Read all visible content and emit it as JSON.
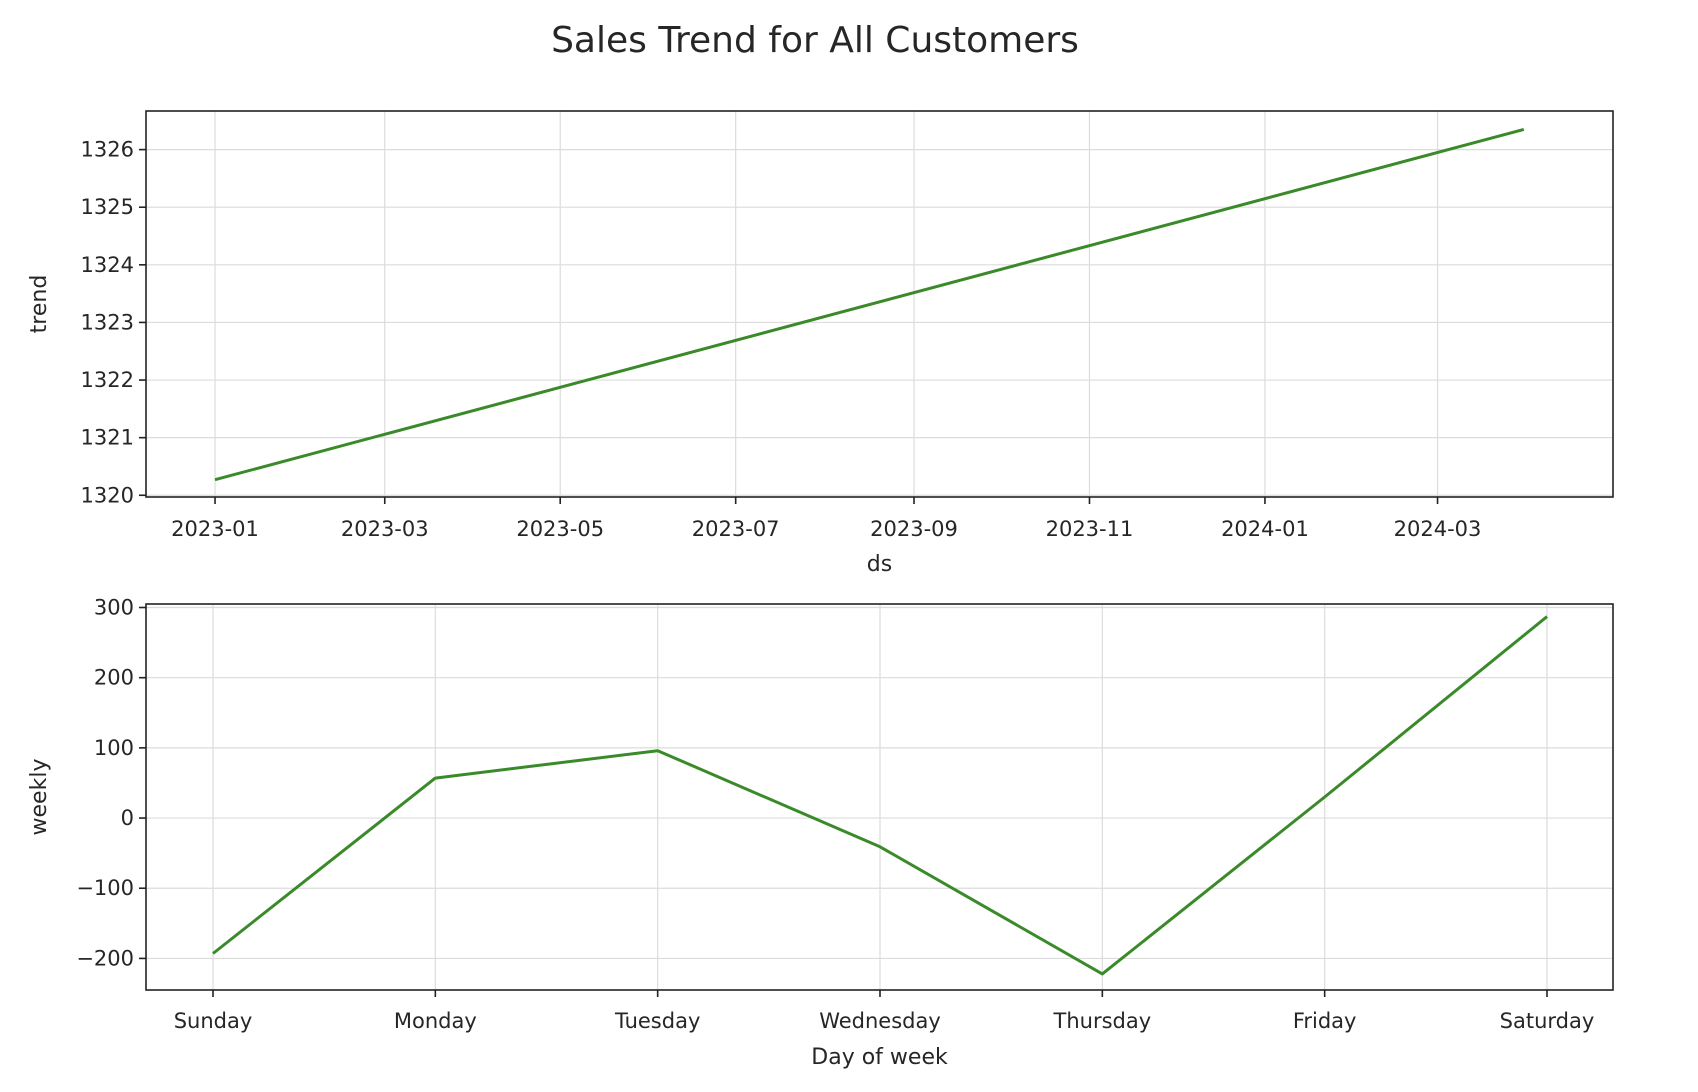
{
  "figure": {
    "title": "Sales Trend for All Customers",
    "line_color": "#3a8a2a"
  },
  "chart_data": [
    {
      "type": "line",
      "name": "trend",
      "xlabel": "ds",
      "ylabel": "trend",
      "x_type": "date",
      "xlim": [
        "2022-12-08",
        "2024-05-01"
      ],
      "ylim": [
        1319.97,
        1326.67
      ],
      "xticks": [
        "2023-01",
        "2023-03",
        "2023-05",
        "2023-07",
        "2023-09",
        "2023-11",
        "2024-01",
        "2024-03"
      ],
      "yticks": [
        1320,
        1321,
        1322,
        1323,
        1324,
        1325,
        1326
      ],
      "grid": true,
      "x": [
        "2023-01-01",
        "2024-03-31"
      ],
      "y": [
        1320.27,
        1326.35
      ]
    },
    {
      "type": "line",
      "name": "weekly",
      "xlabel": "Day of week",
      "ylabel": "weekly",
      "ylim": [
        -245,
        305
      ],
      "categories": [
        "Sunday",
        "Monday",
        "Tuesday",
        "Wednesday",
        "Thursday",
        "Friday",
        "Saturday"
      ],
      "yticks": [
        -200,
        -100,
        0,
        100,
        200,
        300
      ],
      "ytick_labels": [
        "−200",
        "−100",
        "0",
        "100",
        "200",
        "300"
      ],
      "grid": true,
      "values": [
        -193,
        57,
        96,
        -41,
        -222,
        30,
        287
      ]
    }
  ]
}
